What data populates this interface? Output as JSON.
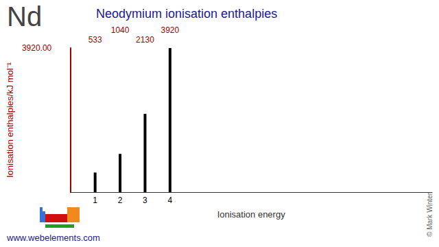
{
  "chart_data": {
    "type": "bar",
    "title": "Neodymium ionisation enthalpies",
    "xlabel": "Ionisation energy",
    "ylabel": "Ionisation enthalpies/kJ mol⁻¹",
    "x": [
      1,
      2,
      3,
      4
    ],
    "values": [
      533,
      1040,
      2130,
      3920
    ],
    "color": "#000000",
    "xlim": [
      0,
      14.5
    ],
    "xticks": [
      1,
      2,
      3,
      4
    ],
    "ylim": [
      0,
      3920
    ],
    "yticks": [
      {
        "value": 3920,
        "label": "3920.00"
      }
    ],
    "grid": false,
    "data_labels": true,
    "annotations": [
      "Nd",
      "www.webelements.com",
      "© Mark Winter"
    ]
  }
}
